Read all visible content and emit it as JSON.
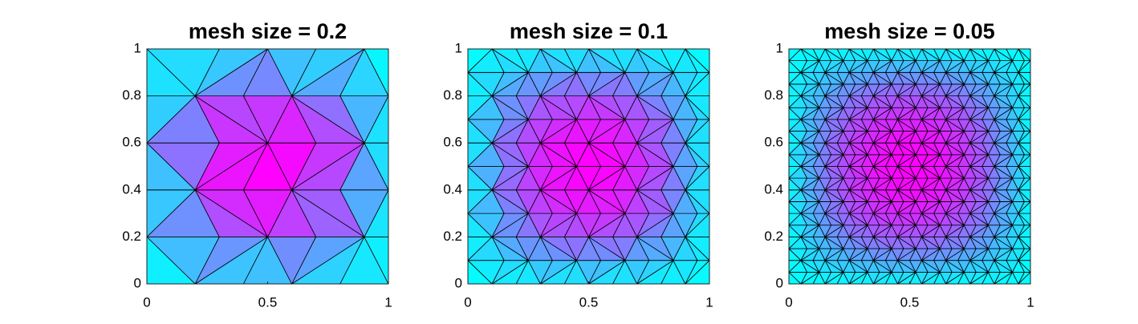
{
  "chart_data": [
    {
      "type": "mesh",
      "title": "mesh size = 0.2",
      "xlim": [
        0,
        1
      ],
      "ylim": [
        0,
        1
      ],
      "xticks": [
        0,
        0.5,
        1
      ],
      "yticks": [
        0,
        0.2,
        0.4,
        0.6,
        0.8,
        1
      ]
    },
    {
      "type": "mesh",
      "title": "mesh size = 0.1",
      "xlim": [
        0,
        1
      ],
      "ylim": [
        0,
        1
      ],
      "xticks": [
        0,
        0.5,
        1
      ],
      "yticks": [
        0,
        0.2,
        0.4,
        0.6,
        0.8,
        1
      ]
    },
    {
      "type": "mesh",
      "title": "mesh size = 0.05",
      "xlim": [
        0,
        1
      ],
      "ylim": [
        0,
        1
      ],
      "xticks": [
        0,
        0.5,
        1
      ],
      "yticks": [
        0,
        0.2,
        0.4,
        0.6,
        0.8,
        1
      ]
    }
  ]
}
